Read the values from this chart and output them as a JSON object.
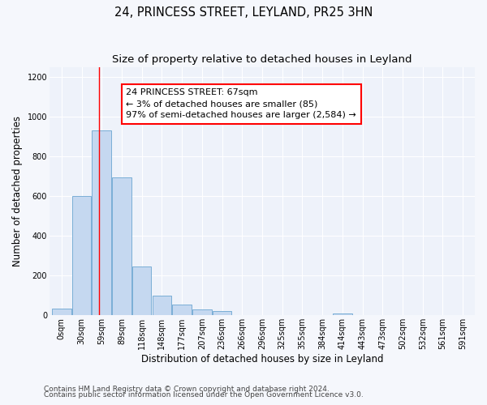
{
  "title": "24, PRINCESS STREET, LEYLAND, PR25 3HN",
  "subtitle": "Size of property relative to detached houses in Leyland",
  "xlabel": "Distribution of detached houses by size in Leyland",
  "ylabel": "Number of detached properties",
  "bar_color": "#c5d8f0",
  "bar_edge_color": "#7aaed6",
  "background_color": "#eef2fa",
  "grid_color": "#ffffff",
  "fig_background": "#f5f7fc",
  "categories": [
    "0sqm",
    "30sqm",
    "59sqm",
    "89sqm",
    "118sqm",
    "148sqm",
    "177sqm",
    "207sqm",
    "236sqm",
    "266sqm",
    "296sqm",
    "325sqm",
    "355sqm",
    "384sqm",
    "414sqm",
    "443sqm",
    "473sqm",
    "502sqm",
    "532sqm",
    "561sqm",
    "591sqm"
  ],
  "values": [
    35,
    600,
    930,
    695,
    245,
    100,
    55,
    28,
    20,
    0,
    0,
    0,
    0,
    0,
    10,
    0,
    0,
    0,
    0,
    0,
    0
  ],
  "ylim": [
    0,
    1250
  ],
  "yticks": [
    0,
    200,
    400,
    600,
    800,
    1000,
    1200
  ],
  "property_line_x": 1.85,
  "annotation_text_line1": "24 PRINCESS STREET: 67sqm",
  "annotation_text_line2": "← 3% of detached houses are smaller (85)",
  "annotation_text_line3": "97% of semi-detached houses are larger (2,584) →",
  "footer_line1": "Contains HM Land Registry data © Crown copyright and database right 2024.",
  "footer_line2": "Contains public sector information licensed under the Open Government Licence v3.0.",
  "title_fontsize": 10.5,
  "subtitle_fontsize": 9.5,
  "axis_label_fontsize": 8.5,
  "tick_fontsize": 7,
  "annotation_fontsize": 8,
  "footer_fontsize": 6.5
}
